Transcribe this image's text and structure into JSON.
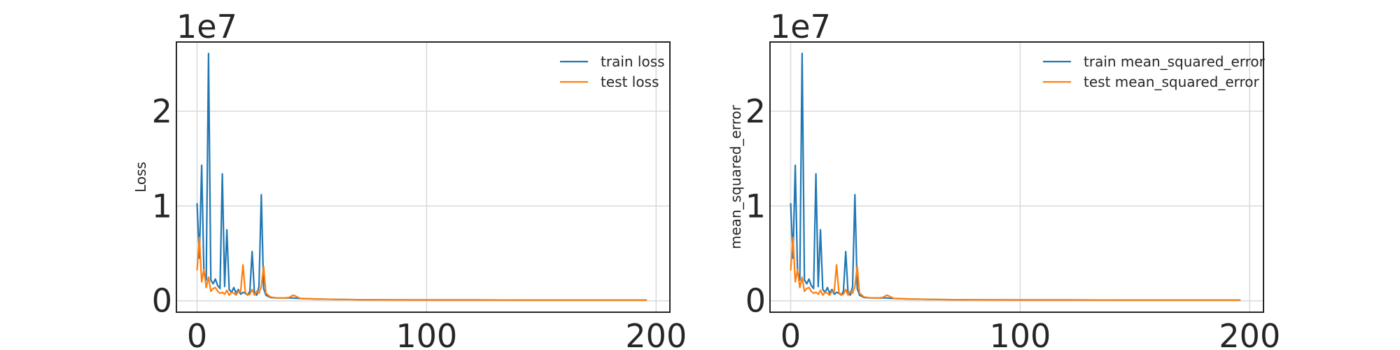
{
  "chart_data": [
    {
      "type": "line",
      "ylabel": "Loss",
      "offset_text": "1e7",
      "x_ticks": [
        0,
        100,
        200
      ],
      "y_ticks": [
        0,
        1,
        2
      ],
      "xlim": [
        -9,
        206
      ],
      "ylim": [
        -1200000,
        27300000
      ],
      "legend": "top-right",
      "grid": true,
      "series": [
        {
          "name": "train loss",
          "color": "#1f77b4",
          "x": [
            0,
            1,
            2,
            3,
            4,
            5,
            6,
            7,
            8,
            9,
            10,
            11,
            12,
            13,
            14,
            15,
            16,
            17,
            18,
            19,
            20,
            21,
            22,
            23,
            24,
            25,
            26,
            27,
            28,
            29,
            30,
            32,
            35,
            38,
            40,
            42,
            45,
            50,
            55,
            60,
            70,
            80,
            100,
            120,
            150,
            180,
            196
          ],
          "y": [
            10300000,
            4500000,
            14300000,
            3000000,
            2200000,
            26100000,
            2200000,
            1800000,
            2300000,
            1600000,
            1300000,
            13400000,
            1500000,
            7500000,
            1200000,
            900000,
            1400000,
            800000,
            1200000,
            700000,
            900000,
            800000,
            600000,
            1000000,
            5200000,
            800000,
            600000,
            1500000,
            11200000,
            1300000,
            600000,
            350000,
            300000,
            300000,
            300000,
            300000,
            250000,
            200000,
            180000,
            150000,
            120000,
            100000,
            90000,
            90000,
            80000,
            80000,
            80000
          ]
        },
        {
          "name": "test loss",
          "color": "#ff7f0e",
          "x": [
            0,
            1,
            2,
            3,
            4,
            5,
            6,
            7,
            8,
            9,
            10,
            11,
            12,
            13,
            14,
            15,
            16,
            17,
            18,
            19,
            20,
            21,
            22,
            23,
            24,
            25,
            26,
            27,
            28,
            29,
            30,
            32,
            35,
            38,
            40,
            42,
            45,
            50,
            55,
            60,
            70,
            80,
            100,
            120,
            150,
            180,
            196
          ],
          "y": [
            3200000,
            6700000,
            2000000,
            3300000,
            1400000,
            2500000,
            1000000,
            1300000,
            1400000,
            1000000,
            800000,
            900000,
            700000,
            1100000,
            600000,
            900000,
            800000,
            600000,
            1000000,
            1000000,
            3800000,
            900000,
            600000,
            700000,
            1200000,
            600000,
            1000000,
            800000,
            1500000,
            3600000,
            800000,
            400000,
            300000,
            300000,
            350000,
            600000,
            250000,
            200000,
            180000,
            150000,
            120000,
            100000,
            90000,
            90000,
            80000,
            80000,
            80000
          ]
        }
      ]
    },
    {
      "type": "line",
      "ylabel": "mean_squared_error",
      "offset_text": "1e7",
      "x_ticks": [
        0,
        100,
        200
      ],
      "y_ticks": [
        0,
        1,
        2
      ],
      "xlim": [
        -9,
        206
      ],
      "ylim": [
        -1200000,
        27300000
      ],
      "legend": "top-right",
      "grid": true,
      "series": [
        {
          "name": "train mean_squared_error",
          "color": "#1f77b4",
          "x": [
            0,
            1,
            2,
            3,
            4,
            5,
            6,
            7,
            8,
            9,
            10,
            11,
            12,
            13,
            14,
            15,
            16,
            17,
            18,
            19,
            20,
            21,
            22,
            23,
            24,
            25,
            26,
            27,
            28,
            29,
            30,
            32,
            35,
            38,
            40,
            42,
            45,
            50,
            55,
            60,
            70,
            80,
            100,
            120,
            150,
            180,
            196
          ],
          "y": [
            10300000,
            4500000,
            14300000,
            3000000,
            2200000,
            26100000,
            2200000,
            1800000,
            2300000,
            1600000,
            1300000,
            13400000,
            1500000,
            7500000,
            1200000,
            900000,
            1400000,
            800000,
            1200000,
            700000,
            900000,
            800000,
            600000,
            1000000,
            5200000,
            800000,
            600000,
            1500000,
            11200000,
            1300000,
            600000,
            350000,
            300000,
            300000,
            300000,
            300000,
            250000,
            200000,
            180000,
            150000,
            120000,
            100000,
            90000,
            90000,
            80000,
            80000,
            80000
          ]
        },
        {
          "name": "test mean_squared_error",
          "color": "#ff7f0e",
          "x": [
            0,
            1,
            2,
            3,
            4,
            5,
            6,
            7,
            8,
            9,
            10,
            11,
            12,
            13,
            14,
            15,
            16,
            17,
            18,
            19,
            20,
            21,
            22,
            23,
            24,
            25,
            26,
            27,
            28,
            29,
            30,
            32,
            35,
            38,
            40,
            42,
            45,
            50,
            55,
            60,
            70,
            80,
            100,
            120,
            150,
            180,
            196
          ],
          "y": [
            3200000,
            6700000,
            2000000,
            3300000,
            1400000,
            2500000,
            1000000,
            1300000,
            1400000,
            1000000,
            800000,
            900000,
            700000,
            1100000,
            600000,
            900000,
            800000,
            600000,
            1000000,
            1000000,
            3800000,
            900000,
            600000,
            700000,
            1200000,
            600000,
            1000000,
            800000,
            1500000,
            3600000,
            800000,
            400000,
            300000,
            300000,
            350000,
            600000,
            250000,
            200000,
            180000,
            150000,
            120000,
            100000,
            90000,
            90000,
            80000,
            80000,
            80000
          ]
        }
      ]
    }
  ]
}
